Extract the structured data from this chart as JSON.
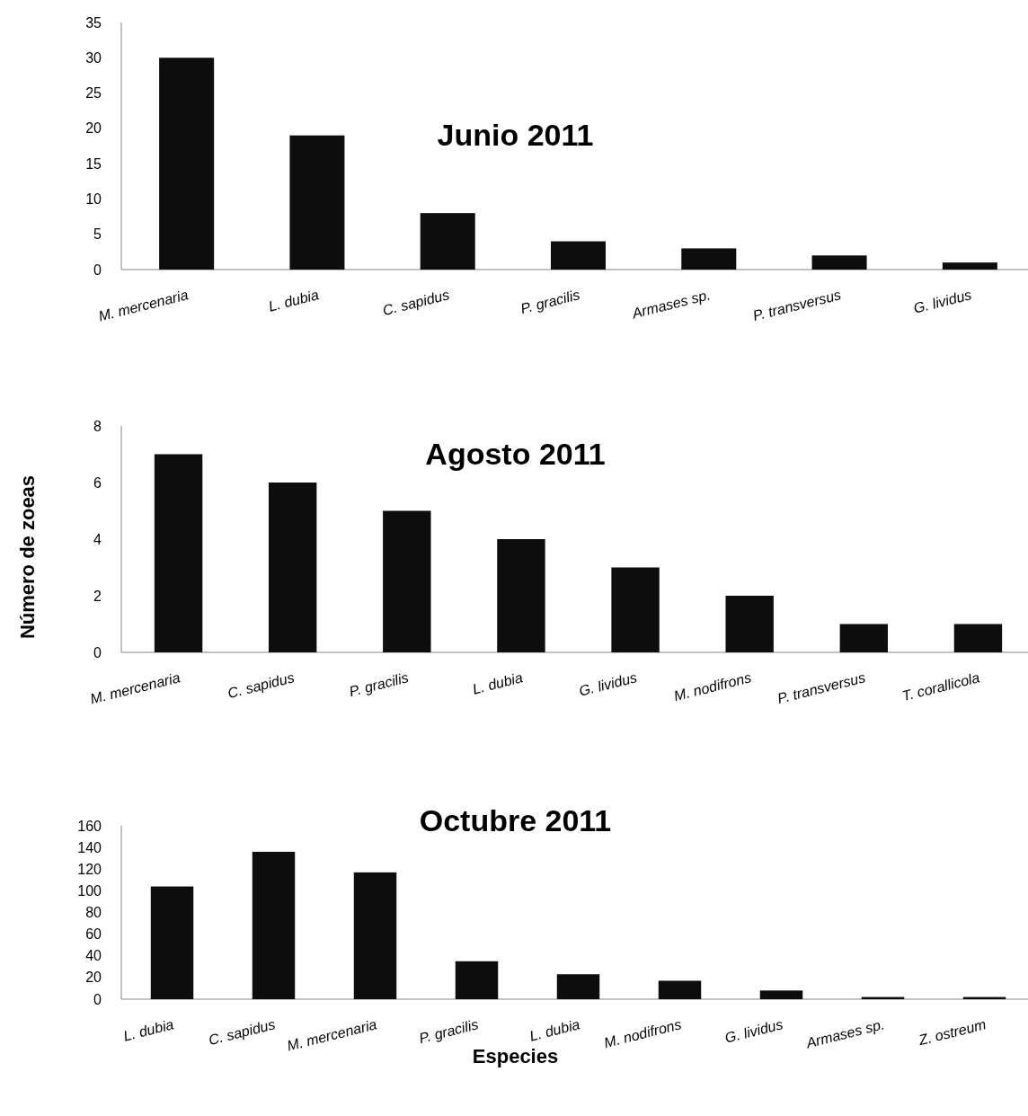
{
  "chart_data": [
    {
      "type": "bar",
      "title": "Junio 2011",
      "categories": [
        "M. mercenaria",
        "L. dubia",
        "C. sapidus",
        "P. gracilis",
        "Armases sp.",
        "P. transversus",
        "G. lividus"
      ],
      "values": [
        30,
        19,
        8,
        4,
        3,
        2,
        1
      ],
      "color": "#0d0d0d",
      "ylim": [
        0,
        35
      ],
      "yticks": [
        0,
        5,
        10,
        15,
        20,
        25,
        30,
        35
      ]
    },
    {
      "type": "bar",
      "title": "Agosto 2011",
      "ylabel": "Número de zoeas",
      "categories": [
        "M.  mercenaria",
        "C. sapidus",
        "P. gracilis",
        "L. dubia",
        "G. lividus",
        "M. nodifrons",
        "P. transversus",
        "T. corallicola"
      ],
      "values": [
        7,
        6,
        5,
        4,
        3,
        2,
        1,
        1
      ],
      "color": "#0d0d0d",
      "ylim": [
        0,
        8
      ],
      "yticks": [
        0,
        2,
        4,
        6,
        8
      ]
    },
    {
      "type": "bar",
      "title": "Octubre 2011",
      "xlabel": "Especies",
      "categories": [
        "L. dubia",
        "C. sapidus",
        "M.  mercenaria",
        "P. gracilis",
        "L. dubia",
        "M. nodifrons",
        "G. lividus",
        "Armases sp.",
        "Z. ostreum"
      ],
      "values": [
        104,
        136,
        117,
        35,
        23,
        17,
        8,
        2,
        2
      ],
      "color": "#0d0d0d",
      "ylim": [
        0,
        160
      ],
      "yticks": [
        0,
        20,
        40,
        60,
        80,
        100,
        120,
        140,
        160
      ]
    }
  ]
}
